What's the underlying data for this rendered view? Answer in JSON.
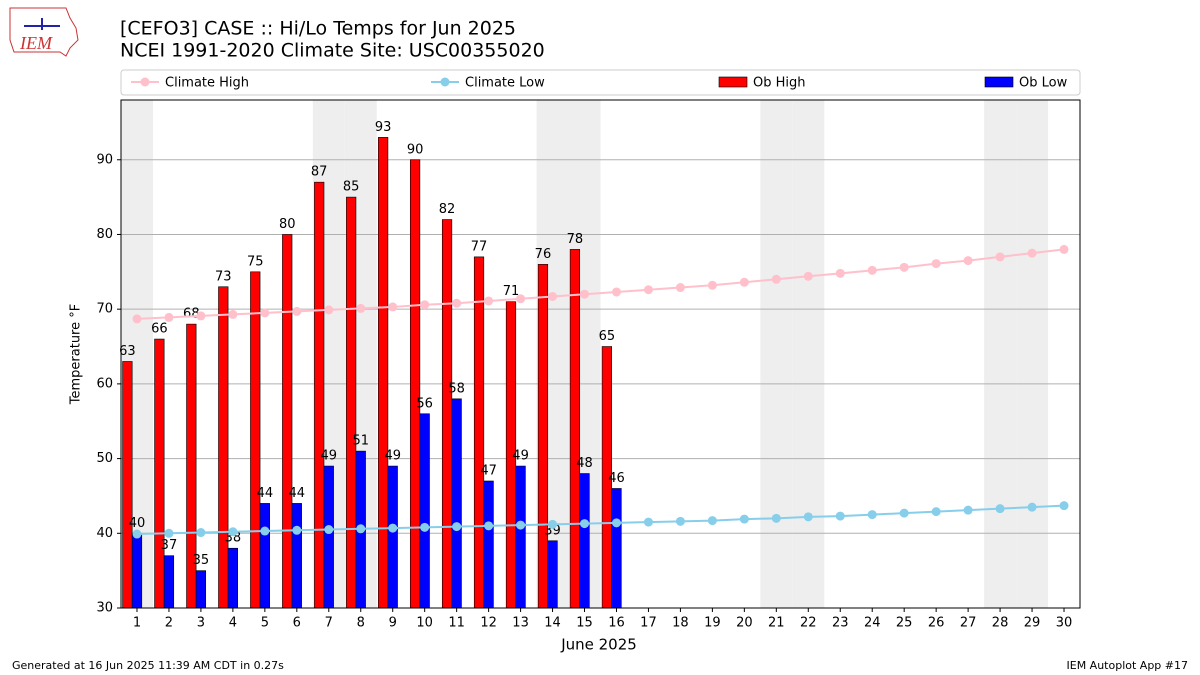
{
  "chart_data": {
    "type": "bar",
    "title": "[CEFO3] CASE :: Hi/Lo Temps for Jun 2025",
    "subtitle": "NCEI 1991-2020 Climate Site: USC00355020",
    "x_label": "June 2025",
    "y_label": "Temperature °F",
    "logo_text": "IEM",
    "footer_left": "Generated at 16 Jun 2025 11:39 AM CDT in 0.27s",
    "footer_right": "IEM Autoplot App #17",
    "x": [
      1,
      2,
      3,
      4,
      5,
      6,
      7,
      8,
      9,
      10,
      11,
      12,
      13,
      14,
      15,
      16,
      17,
      18,
      19,
      20,
      21,
      22,
      23,
      24,
      25,
      26,
      27,
      28,
      29,
      30
    ],
    "xlim": [
      0.5,
      30.5
    ],
    "xticks": [
      1,
      2,
      3,
      4,
      5,
      6,
      7,
      8,
      9,
      10,
      11,
      12,
      13,
      14,
      15,
      16,
      17,
      18,
      19,
      20,
      21,
      22,
      23,
      24,
      25,
      26,
      27,
      28,
      29,
      30
    ],
    "ylim": [
      30,
      98
    ],
    "yticks": [
      30,
      40,
      50,
      60,
      70,
      80,
      90
    ],
    "grid": true,
    "shaded_x": [
      1,
      7,
      8,
      14,
      15,
      21,
      22,
      28,
      29
    ],
    "series": [
      {
        "name": "Climate High",
        "type": "line",
        "color": "#ffc0cb",
        "values": [
          68.7,
          68.9,
          69.1,
          69.3,
          69.5,
          69.7,
          69.9,
          70.1,
          70.3,
          70.6,
          70.8,
          71.1,
          71.4,
          71.7,
          72.0,
          72.3,
          72.6,
          72.9,
          73.2,
          73.6,
          74.0,
          74.4,
          74.8,
          75.2,
          75.6,
          76.1,
          76.5,
          77.0,
          77.5,
          78.0
        ]
      },
      {
        "name": "Climate Low",
        "type": "line",
        "color": "#87ceeb",
        "values": [
          39.9,
          40.0,
          40.1,
          40.2,
          40.3,
          40.4,
          40.5,
          40.6,
          40.7,
          40.8,
          40.9,
          41.0,
          41.1,
          41.2,
          41.3,
          41.4,
          41.5,
          41.6,
          41.7,
          41.9,
          42.0,
          42.2,
          42.3,
          42.5,
          42.7,
          42.9,
          43.1,
          43.3,
          43.5,
          43.7
        ]
      },
      {
        "name": "Ob High",
        "type": "bar",
        "color": "#ff0000",
        "values": [
          63,
          66,
          68,
          73,
          75,
          80,
          87,
          85,
          93,
          90,
          82,
          77,
          71,
          76,
          78,
          65,
          null,
          null,
          null,
          null,
          null,
          null,
          null,
          null,
          null,
          null,
          null,
          null,
          null,
          null
        ]
      },
      {
        "name": "Ob Low",
        "type": "bar",
        "color": "#0000ff",
        "values": [
          40,
          37,
          35,
          38,
          44,
          44,
          49,
          51,
          49,
          56,
          58,
          47,
          49,
          39,
          48,
          46,
          null,
          null,
          null,
          null,
          null,
          null,
          null,
          null,
          null,
          null,
          null,
          null,
          null,
          null
        ]
      }
    ]
  }
}
